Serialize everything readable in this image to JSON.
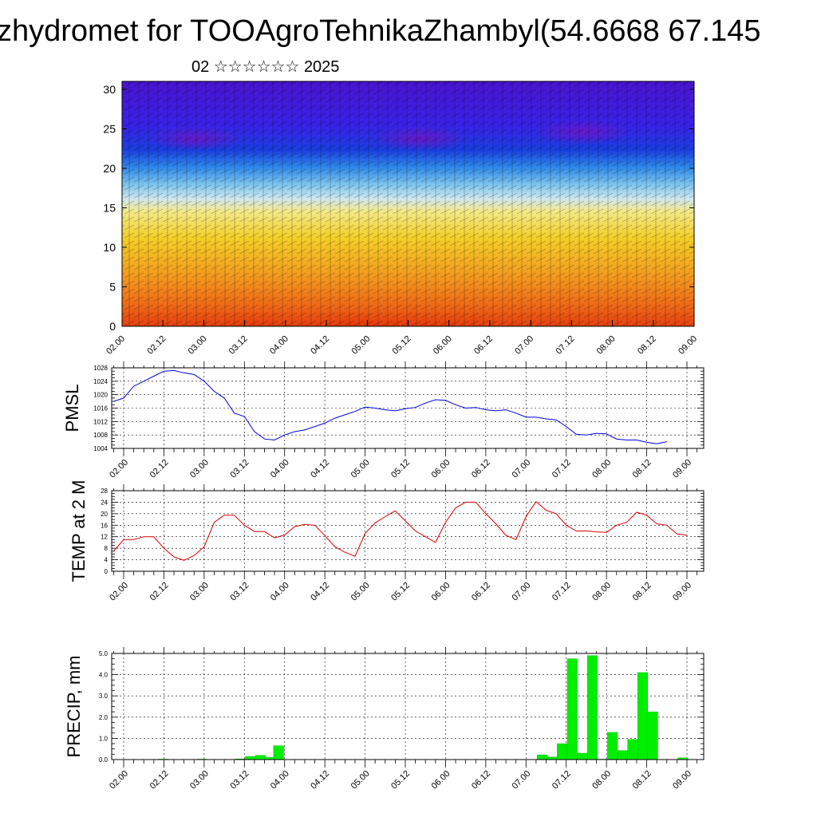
{
  "header": {
    "title": "zhydromet for TOOAgroTehnikaZhambyl(54.6668 67.145",
    "subtitle": "02 ☆☆☆☆☆☆ 2025"
  },
  "chart_data": [
    {
      "type": "heatmap",
      "name": "cross-section",
      "ylim": [
        0,
        31
      ],
      "yticks": [
        "0",
        "5",
        "10",
        "15",
        "20",
        "25",
        "30"
      ],
      "xticks": [
        "02.00",
        "02.12",
        "03.00",
        "03.12",
        "04.00",
        "04.12",
        "05.00",
        "05.12",
        "06.00",
        "06.12",
        "07.00",
        "07.12",
        "08.00",
        "08.12",
        "09.00"
      ],
      "colors": {
        "top": "#3a10d8",
        "mid": "#2a6af0",
        "light": "#b8e0f0",
        "warm": "#f2c020",
        "hot": "#e82000"
      },
      "has_wind_barbs": true
    },
    {
      "type": "line",
      "ylabel": "PMSL",
      "ylim": [
        1004,
        1028
      ],
      "yticks": [
        "1004",
        "1008",
        "1012",
        "1016",
        "1020",
        "1024",
        "1028"
      ],
      "xticks": [
        "02.00",
        "02.12",
        "03.00",
        "03.12",
        "04.00",
        "04.12",
        "05.00",
        "05.12",
        "06.00",
        "06.12",
        "07.00",
        "07.12",
        "08.00",
        "08.12",
        "09.00"
      ],
      "color": "#0000dd",
      "x": [
        -0.25,
        0,
        0.25,
        0.5,
        0.75,
        1,
        1.25,
        1.5,
        1.75,
        2,
        2.25,
        2.5,
        2.75,
        3,
        3.25,
        3.5,
        3.75,
        4,
        4.25,
        4.5,
        4.75,
        5,
        5.25,
        5.5,
        5.75,
        6,
        6.25,
        6.5,
        6.75,
        7,
        7.25,
        7.5,
        7.75,
        8,
        8.25,
        8.5,
        8.75,
        9,
        9.25,
        9.5,
        9.75,
        10,
        10.25,
        10.5,
        10.75,
        11,
        11.25,
        11.5,
        11.75,
        12,
        12.25,
        12.5,
        12.75,
        13,
        13.25,
        13.5
      ],
      "values": [
        1018,
        1019,
        1022.5,
        1024,
        1025.5,
        1027,
        1027.2,
        1026.5,
        1026,
        1024,
        1021,
        1019,
        1014.5,
        1013.5,
        1009,
        1006.8,
        1006.5,
        1008,
        1009,
        1009.5,
        1010.5,
        1011.5,
        1013,
        1014,
        1015,
        1016.3,
        1016,
        1015.5,
        1015.2,
        1015.8,
        1016.2,
        1017.5,
        1018.5,
        1018.3,
        1017,
        1016,
        1016.2,
        1015.5,
        1015.2,
        1015.5,
        1014.5,
        1013.3,
        1013.3,
        1012.8,
        1012.5,
        1010.5,
        1008.2,
        1008,
        1008.5,
        1008.3,
        1006.8,
        1006.5,
        1006.5,
        1005.8,
        1005.4,
        1006
      ]
    },
    {
      "type": "line",
      "ylabel": "TEMP at 2 M",
      "ylim": [
        0,
        28
      ],
      "yticks": [
        "0",
        "4",
        "8",
        "12",
        "16",
        "20",
        "24",
        "28"
      ],
      "xticks": [
        "02.00",
        "02.12",
        "03.00",
        "03.12",
        "04.00",
        "04.12",
        "05.00",
        "05.12",
        "06.00",
        "06.12",
        "07.00",
        "07.12",
        "08.00",
        "08.12",
        "09.00"
      ],
      "color": "#dd0000",
      "x": [
        -0.25,
        0,
        0.25,
        0.5,
        0.75,
        1,
        1.25,
        1.5,
        1.75,
        2,
        2.25,
        2.5,
        2.75,
        3,
        3.25,
        3.5,
        3.75,
        4,
        4.25,
        4.5,
        4.75,
        5,
        5.25,
        5.5,
        5.75,
        6,
        6.25,
        6.5,
        6.75,
        7,
        7.25,
        7.5,
        7.75,
        8,
        8.25,
        8.5,
        8.75,
        9,
        9.25,
        9.5,
        9.75,
        10,
        10.25,
        10.5,
        10.75,
        11,
        11.25,
        11.5,
        11.75,
        12,
        12.25,
        12.5,
        12.75,
        13,
        13.25,
        13.5
      ],
      "values": [
        7,
        11,
        11,
        12,
        12,
        8,
        5,
        3.8,
        5.5,
        8.5,
        17,
        19.5,
        19.5,
        16,
        13.8,
        13.8,
        11.6,
        12.6,
        15.5,
        16.3,
        16,
        12.4,
        8.5,
        6.6,
        5.2,
        13.2,
        16.8,
        19,
        21,
        17.5,
        14,
        12,
        10,
        17,
        22,
        24,
        24,
        20,
        16.5,
        12.5,
        11,
        19,
        24.2,
        21.2,
        20,
        16,
        14,
        14,
        13.7,
        13.5,
        16,
        17,
        20.5,
        19.5,
        16.5,
        16
      ],
      "extra": [
        13,
        12.5
      ]
    },
    {
      "type": "bar",
      "ylabel": "PRECIP, mm",
      "ylim": [
        0,
        5
      ],
      "yticks": [
        "0.0",
        "1.0",
        "2.0",
        "3.0",
        "4.0",
        "5.0"
      ],
      "xticks": [
        "02.00",
        "02.12",
        "03.00",
        "03.12",
        "04.00",
        "04.12",
        "05.00",
        "05.12",
        "06.00",
        "06.12",
        "07.00",
        "07.12",
        "08.00",
        "08.12",
        "09.00"
      ],
      "color": "#00ee00",
      "x": [
        0.98,
        1.95,
        2.9,
        3.15,
        3.4,
        3.65,
        3.85,
        10.4,
        10.65,
        10.9,
        11.15,
        11.4,
        11.65,
        11.9,
        12.15,
        12.4,
        12.65,
        12.9,
        13.15,
        13.9
      ],
      "values": [
        0.02,
        0.02,
        0.03,
        0.15,
        0.2,
        0.1,
        0.65,
        0.22,
        0.12,
        0.75,
        4.75,
        0.3,
        4.9,
        0.02,
        1.28,
        0.42,
        0.95,
        4.1,
        2.25,
        0.08
      ]
    }
  ]
}
